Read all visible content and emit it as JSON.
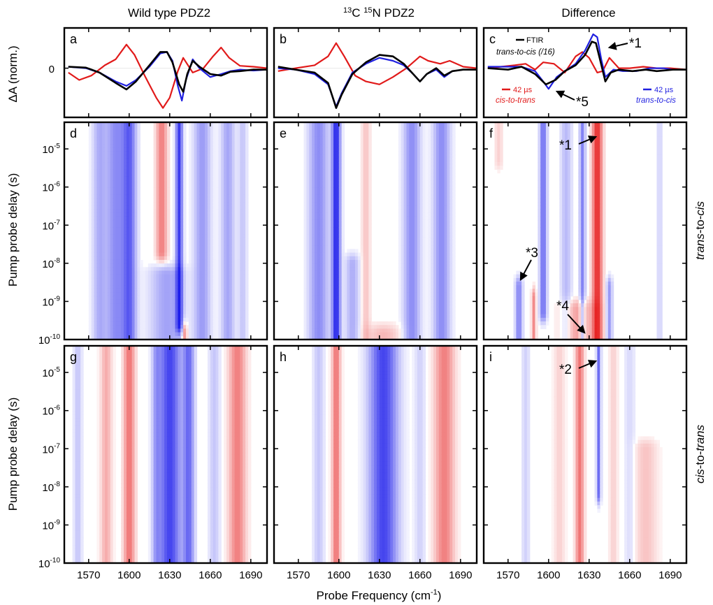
{
  "chart_data": {
    "type": "heatmap",
    "column_titles": [
      "Wild type PDZ2",
      "13C 15N PDZ2",
      "Difference"
    ],
    "column_title_parts": {
      "c13": "13",
      "c": "C ",
      "n15": "15",
      "n": "N PDZ2"
    },
    "row_labels": {
      "row2": "trans-to-cis",
      "row3": "cis-to-trans"
    },
    "row_label_parts": {
      "row2": [
        "trans",
        "-to-",
        "cis"
      ],
      "row3": [
        "cis",
        "-to-",
        "trans"
      ]
    },
    "panel_letters": [
      "a",
      "b",
      "c",
      "d",
      "e",
      "f",
      "g",
      "h",
      "i"
    ],
    "xlabel": "Probe Frequency (cm-1)",
    "xlabel_parts": {
      "main": "Probe Frequency (cm",
      "sup": "-1",
      "close": ")"
    },
    "xticks": [
      1570,
      1600,
      1630,
      1660,
      1690
    ],
    "xlim": [
      1552,
      1702
    ],
    "top_ylabel": "ΔA (norm.)",
    "top_ytick": "0",
    "map_ylabel": "Pump probe delay (s)",
    "map_yscale": "log",
    "map_ylim": [
      1e-10,
      5e-05
    ],
    "map_yticks": [
      {
        "value": 1e-05,
        "base": "10",
        "exp": "-5"
      },
      {
        "value": 1e-06,
        "base": "10",
        "exp": "-6"
      },
      {
        "value": 1e-07,
        "base": "10",
        "exp": "-7"
      },
      {
        "value": 1e-08,
        "base": "10",
        "exp": "-8"
      },
      {
        "value": 1e-09,
        "base": "10",
        "exp": "-9"
      },
      {
        "value": 1e-10,
        "base": "10",
        "exp": "-10"
      }
    ],
    "colors": {
      "red": "#e11a1a",
      "blue": "#1f1fe0",
      "black": "#000000"
    },
    "legend": {
      "ftir": "FTIR",
      "t2c16": "trans-to-cis (/16)",
      "red_time": "42 µs",
      "red_name": "cis-to-trans",
      "blue_time": "42 µs",
      "blue_name": "trans-to-cis"
    },
    "annotations": {
      "a1": "*1",
      "a2": "*2",
      "a3": "*3",
      "a4": "*4",
      "a5": "*5"
    },
    "traces": {
      "a": {
        "black": [
          [
            1555,
            0.05
          ],
          [
            1568,
            0.02
          ],
          [
            1578,
            -0.15
          ],
          [
            1590,
            -0.5
          ],
          [
            1598,
            -0.72
          ],
          [
            1605,
            -0.45
          ],
          [
            1615,
            0.1
          ],
          [
            1623,
            0.55
          ],
          [
            1628,
            0.55
          ],
          [
            1632,
            0.2
          ],
          [
            1637,
            -0.55
          ],
          [
            1640,
            -0.8
          ],
          [
            1643,
            -0.2
          ],
          [
            1647,
            0.25
          ],
          [
            1652,
            0.05
          ],
          [
            1660,
            -0.2
          ],
          [
            1668,
            -0.25
          ],
          [
            1675,
            -0.12
          ],
          [
            1682,
            -0.1
          ],
          [
            1692,
            -0.05
          ],
          [
            1702,
            -0.05
          ]
        ],
        "blue": [
          [
            1555,
            0.05
          ],
          [
            1568,
            0.0
          ],
          [
            1578,
            -0.15
          ],
          [
            1590,
            -0.45
          ],
          [
            1598,
            -0.6
          ],
          [
            1605,
            -0.4
          ],
          [
            1615,
            0.05
          ],
          [
            1623,
            0.5
          ],
          [
            1628,
            0.55
          ],
          [
            1632,
            0.25
          ],
          [
            1636,
            -0.6
          ],
          [
            1639,
            -1.1
          ],
          [
            1642,
            -0.4
          ],
          [
            1647,
            0.3
          ],
          [
            1652,
            0.0
          ],
          [
            1660,
            -0.3
          ],
          [
            1668,
            -0.2
          ],
          [
            1675,
            -0.1
          ],
          [
            1682,
            -0.05
          ],
          [
            1692,
            -0.08
          ],
          [
            1702,
            -0.05
          ]
        ],
        "red": [
          [
            1555,
            -0.15
          ],
          [
            1563,
            -0.4
          ],
          [
            1572,
            -0.25
          ],
          [
            1582,
            0.1
          ],
          [
            1590,
            0.3
          ],
          [
            1598,
            0.8
          ],
          [
            1604,
            0.45
          ],
          [
            1612,
            -0.3
          ],
          [
            1620,
            -1.0
          ],
          [
            1625,
            -1.35
          ],
          [
            1630,
            -1.0
          ],
          [
            1636,
            -0.1
          ],
          [
            1640,
            0.35
          ],
          [
            1647,
            -0.15
          ],
          [
            1655,
            0.0
          ],
          [
            1662,
            0.4
          ],
          [
            1668,
            0.7
          ],
          [
            1674,
            0.35
          ],
          [
            1682,
            0.08
          ],
          [
            1692,
            0.05
          ],
          [
            1702,
            0.0
          ]
        ]
      },
      "b": {
        "black": [
          [
            1555,
            0.05
          ],
          [
            1568,
            -0.05
          ],
          [
            1582,
            -0.15
          ],
          [
            1592,
            -0.5
          ],
          [
            1598,
            -1.35
          ],
          [
            1602,
            -0.9
          ],
          [
            1610,
            -0.2
          ],
          [
            1620,
            0.2
          ],
          [
            1630,
            0.45
          ],
          [
            1640,
            0.4
          ],
          [
            1648,
            0.15
          ],
          [
            1655,
            -0.2
          ],
          [
            1660,
            -0.45
          ],
          [
            1665,
            -0.2
          ],
          [
            1672,
            0.0
          ],
          [
            1678,
            -0.25
          ],
          [
            1684,
            -0.1
          ],
          [
            1692,
            -0.05
          ],
          [
            1702,
            -0.05
          ]
        ],
        "blue": [
          [
            1555,
            0.0
          ],
          [
            1568,
            -0.05
          ],
          [
            1582,
            -0.2
          ],
          [
            1592,
            -0.55
          ],
          [
            1598,
            -1.3
          ],
          [
            1602,
            -0.85
          ],
          [
            1610,
            -0.15
          ],
          [
            1620,
            0.15
          ],
          [
            1630,
            0.35
          ],
          [
            1640,
            0.25
          ],
          [
            1648,
            0.1
          ],
          [
            1655,
            -0.2
          ],
          [
            1660,
            -0.45
          ],
          [
            1665,
            -0.2
          ],
          [
            1672,
            -0.05
          ],
          [
            1678,
            -0.3
          ],
          [
            1684,
            -0.1
          ],
          [
            1692,
            -0.05
          ],
          [
            1702,
            -0.05
          ]
        ],
        "red": [
          [
            1555,
            -0.1
          ],
          [
            1568,
            0.0
          ],
          [
            1582,
            0.1
          ],
          [
            1592,
            0.4
          ],
          [
            1598,
            0.85
          ],
          [
            1604,
            0.4
          ],
          [
            1612,
            -0.25
          ],
          [
            1620,
            -0.45
          ],
          [
            1630,
            -0.55
          ],
          [
            1640,
            -0.3
          ],
          [
            1650,
            0.0
          ],
          [
            1660,
            0.4
          ],
          [
            1666,
            0.25
          ],
          [
            1675,
            0.15
          ],
          [
            1682,
            0.25
          ],
          [
            1692,
            0.05
          ],
          [
            1702,
            0.0
          ]
        ]
      },
      "c": {
        "black": [
          [
            1555,
            0.0
          ],
          [
            1570,
            -0.05
          ],
          [
            1580,
            0.05
          ],
          [
            1590,
            -0.2
          ],
          [
            1598,
            -0.55
          ],
          [
            1605,
            -0.4
          ],
          [
            1612,
            -0.1
          ],
          [
            1620,
            0.1
          ],
          [
            1627,
            0.45
          ],
          [
            1632,
            0.9
          ],
          [
            1635,
            0.85
          ],
          [
            1638,
            0.3
          ],
          [
            1642,
            -0.45
          ],
          [
            1646,
            -0.15
          ],
          [
            1652,
            -0.05
          ],
          [
            1662,
            -0.1
          ],
          [
            1672,
            -0.05
          ],
          [
            1680,
            -0.1
          ],
          [
            1692,
            -0.05
          ],
          [
            1702,
            -0.05
          ]
        ],
        "blue": [
          [
            1555,
            0.05
          ],
          [
            1570,
            0.05
          ],
          [
            1580,
            0.05
          ],
          [
            1590,
            -0.1
          ],
          [
            1596,
            -0.45
          ],
          [
            1600,
            -0.7
          ],
          [
            1606,
            -0.3
          ],
          [
            1612,
            -0.1
          ],
          [
            1620,
            0.15
          ],
          [
            1627,
            0.6
          ],
          [
            1633,
            1.15
          ],
          [
            1636,
            1.05
          ],
          [
            1639,
            0.3
          ],
          [
            1642,
            -0.3
          ],
          [
            1648,
            -0.05
          ],
          [
            1655,
            -0.1
          ],
          [
            1665,
            -0.1
          ],
          [
            1675,
            0.0
          ],
          [
            1685,
            0.0
          ],
          [
            1692,
            -0.05
          ],
          [
            1702,
            -0.05
          ]
        ],
        "red": [
          [
            1555,
            0.0
          ],
          [
            1565,
            0.05
          ],
          [
            1575,
            0.1
          ],
          [
            1583,
            0.15
          ],
          [
            1590,
            -0.05
          ],
          [
            1596,
            0.2
          ],
          [
            1604,
            0.15
          ],
          [
            1612,
            -0.15
          ],
          [
            1620,
            0.4
          ],
          [
            1625,
            0.55
          ],
          [
            1630,
            0.35
          ],
          [
            1636,
            -0.15
          ],
          [
            1640,
            -0.1
          ],
          [
            1645,
            0.35
          ],
          [
            1652,
            0.0
          ],
          [
            1660,
            0.0
          ],
          [
            1670,
            0.05
          ],
          [
            1680,
            0.0
          ],
          [
            1690,
            0.0
          ],
          [
            1702,
            -0.05
          ]
        ]
      }
    },
    "bands": {
      "d": [
        {
          "f": 1578,
          "w": 5,
          "a": -0.3,
          "t0": -10,
          "t1": -4.3
        },
        {
          "f": 1590,
          "w": 7,
          "a": -0.45,
          "t0": -10,
          "t1": -4.3
        },
        {
          "f": 1600,
          "w": 5,
          "a": -0.65,
          "t0": -10,
          "t1": -4.3
        },
        {
          "f": 1624,
          "w": 4,
          "a": 0.5,
          "t0": -7.7,
          "t1": -4.3
        },
        {
          "f": 1637,
          "w": 2.5,
          "a": -0.85,
          "t0": -9.6,
          "t1": -4.3
        },
        {
          "f": 1628,
          "w": 12,
          "a": -0.35,
          "t0": -10,
          "t1": -8.3
        },
        {
          "f": 1654,
          "w": 6,
          "a": -0.38,
          "t0": -10,
          "t1": -4.3
        },
        {
          "f": 1673,
          "w": 5,
          "a": -0.33,
          "t0": -10,
          "t1": -4.3
        },
        {
          "f": 1684,
          "w": 3,
          "a": -0.2,
          "t0": -10,
          "t1": -4.3
        },
        {
          "f": 1641,
          "w": 2,
          "a": 0.5,
          "t0": -10,
          "t1": -9.8
        }
      ],
      "e": [
        {
          "f": 1585,
          "w": 7,
          "a": -0.45,
          "t0": -10,
          "t1": -4.3
        },
        {
          "f": 1598,
          "w": 3,
          "a": -0.95,
          "t0": -10,
          "t1": -4.3
        },
        {
          "f": 1620,
          "w": 3,
          "a": 0.2,
          "t0": -10,
          "t1": -4.3
        },
        {
          "f": 1610,
          "w": 5,
          "a": -0.3,
          "t0": -10,
          "t1": -8.0
        },
        {
          "f": 1654,
          "w": 6,
          "a": -0.45,
          "t0": -10,
          "t1": -4.3
        },
        {
          "f": 1676,
          "w": 6,
          "a": -0.45,
          "t0": -10,
          "t1": -4.3
        },
        {
          "f": 1633,
          "w": 12,
          "a": 0.25,
          "t0": -10,
          "t1": -9.85
        }
      ],
      "f": [
        {
          "f": 1578,
          "w": 2.5,
          "a": -0.5,
          "t0": -10,
          "t1": -8.6
        },
        {
          "f": 1596,
          "w": 2.5,
          "a": -0.6,
          "t0": -9.3,
          "t1": -4.3
        },
        {
          "f": 1613,
          "w": 4,
          "a": -0.25,
          "t0": -10,
          "t1": -4.3
        },
        {
          "f": 1625,
          "w": 2,
          "a": -0.5,
          "t0": -10,
          "t1": -4.3
        },
        {
          "f": 1636,
          "w": 3.5,
          "a": 0.9,
          "t0": -10,
          "t1": -4.3
        },
        {
          "f": 1622,
          "w": 12,
          "a": 0.35,
          "t0": -10,
          "t1": -9.2
        },
        {
          "f": 1645,
          "w": 2,
          "a": -0.4,
          "t0": -10,
          "t1": -8.6
        },
        {
          "f": 1589,
          "w": 1.5,
          "a": 0.45,
          "t0": -10,
          "t1": -8.9
        },
        {
          "f": 1682,
          "w": 2,
          "a": -0.15,
          "t0": -10,
          "t1": -4.3
        },
        {
          "f": 1563,
          "w": 3,
          "a": 0.15,
          "t0": -5.3,
          "t1": -4.3
        }
      ],
      "g": [
        {
          "f": 1600,
          "w": 4,
          "a": 0.55,
          "t0": -10,
          "t1": -4.3
        },
        {
          "f": 1583,
          "w": 4,
          "a": 0.3,
          "t0": -10,
          "t1": -4.3
        },
        {
          "f": 1630,
          "w": 8,
          "a": -0.8,
          "t0": -10,
          "t1": -4.3
        },
        {
          "f": 1620,
          "w": 3,
          "a": -0.3,
          "t0": -10,
          "t1": -4.3
        },
        {
          "f": 1644,
          "w": 4,
          "a": -0.6,
          "t0": -10,
          "t1": -4.3
        },
        {
          "f": 1680,
          "w": 6,
          "a": 0.5,
          "t0": -10,
          "t1": -4.3
        },
        {
          "f": 1562,
          "w": 3,
          "a": -0.2,
          "t0": -10,
          "t1": -4.3
        },
        {
          "f": 1663,
          "w": 4,
          "a": -0.2,
          "t0": -10,
          "t1": -4.3
        }
      ],
      "h": [
        {
          "f": 1598,
          "w": 3,
          "a": 0.55,
          "t0": -10,
          "t1": -4.3
        },
        {
          "f": 1585,
          "w": 4,
          "a": -0.2,
          "t0": -10,
          "t1": -4.3
        },
        {
          "f": 1633,
          "w": 10,
          "a": -0.8,
          "t0": -10,
          "t1": -4.3
        },
        {
          "f": 1678,
          "w": 7,
          "a": 0.5,
          "t0": -10,
          "t1": -4.3
        },
        {
          "f": 1660,
          "w": 4,
          "a": -0.15,
          "t0": -10,
          "t1": -4.3
        }
      ],
      "i": [
        {
          "f": 1623,
          "w": 3,
          "a": 0.55,
          "t0": -10,
          "t1": -4.3
        },
        {
          "f": 1637,
          "w": 1.5,
          "a": -0.6,
          "t0": -8.2,
          "t1": -4.3
        },
        {
          "f": 1608,
          "w": 4,
          "a": 0.15,
          "t0": -10,
          "t1": -4.3
        },
        {
          "f": 1583,
          "w": 3,
          "a": -0.15,
          "t0": -10,
          "t1": -4.3
        },
        {
          "f": 1672,
          "w": 8,
          "a": 0.2,
          "t0": -10,
          "t1": -7.0
        },
        {
          "f": 1648,
          "w": 3,
          "a": 0.15,
          "t0": -10,
          "t1": -4.3
        },
        {
          "f": 1660,
          "w": 4,
          "a": -0.12,
          "t0": -10,
          "t1": -4.3
        }
      ]
    }
  }
}
